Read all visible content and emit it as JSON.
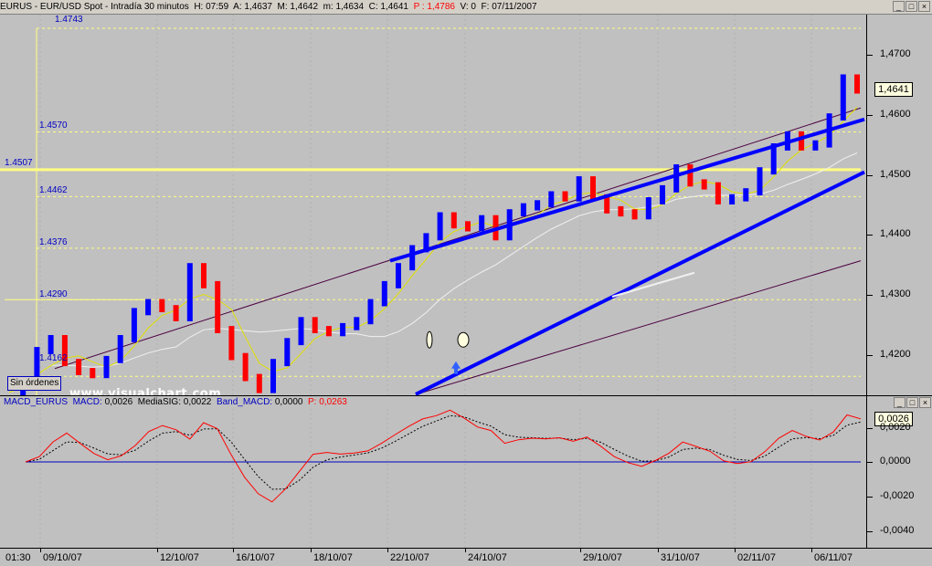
{
  "window": {
    "title_symbol": "EURUS",
    "title_name": "EUR/USD Spot",
    "title_period": "Intradía 30 minutos",
    "title_h": "H: 07:59",
    "title_a": "A: 1,4637",
    "title_m": "M: 1,4642",
    "title_min": "m: 1,4634",
    "title_c": "C: 1,4641",
    "title_p": "P : 1,4786",
    "title_v": "V: 0",
    "title_f": "F: 07/11/2007",
    "btn_min": "_",
    "btn_max": "□",
    "btn_close": "×"
  },
  "price_axis": {
    "ticks": [
      "1,4700",
      "1,4600",
      "1,4500",
      "1,4400",
      "1,4300",
      "1,4200"
    ],
    "last_price": "1,4641"
  },
  "levels": [
    "1.4743",
    "1.4570",
    "1.4507",
    "1.4462",
    "1.4376",
    "1.4290",
    "1.4162"
  ],
  "orders_button": "Sin órdenes",
  "watermark": "www.visualchart.com",
  "macd": {
    "name": "MACD_EURUS",
    "macd_label": "MACD:",
    "macd_value": "0,0026",
    "sig_label": "MediaSIG:",
    "sig_value": "0,0022",
    "band_label": "Band_MACD:",
    "band_value": "0,0000",
    "p_label": "P:",
    "p_value": "0,0263",
    "ticks": [
      "0,0020",
      "0,0000",
      "-0,0020",
      "-0,0040"
    ],
    "last_value": "0,0026"
  },
  "date_axis": [
    "01:30",
    "09/10/07",
    "12/10/07",
    "16/10/07",
    "18/10/07",
    "22/10/07",
    "24/10/07",
    "29/10/07",
    "31/10/07",
    "02/11/07",
    "06/11/07"
  ],
  "colors": {
    "background": "#c0c0c0",
    "up_candle": "#0000ff",
    "down_candle": "#ff0000",
    "trendline": "#0000ff",
    "channel": "#4b0040",
    "level_line": "#ffff80",
    "moving_average": "#e0e000",
    "long_average": "#f0f0f0",
    "macd_line": "#ff0000",
    "signal_line": "#000000"
  },
  "chart_data": {
    "type": "line",
    "title": "EUR/USD Spot - Intradía 30 minutos",
    "price_range": [
      1.413,
      1.478
    ],
    "date_labels": [
      "09/10/07",
      "12/10/07",
      "16/10/07",
      "18/10/07",
      "22/10/07",
      "24/10/07",
      "29/10/07",
      "31/10/07",
      "02/11/07",
      "06/11/07"
    ],
    "series": [
      {
        "name": "EURUS",
        "values": [
          1.4135,
          1.4155,
          1.4205,
          1.4225,
          1.4185,
          1.417,
          1.4165,
          1.419,
          1.4225,
          1.427,
          1.4285,
          1.4275,
          1.426,
          1.4345,
          1.4315,
          1.424,
          1.4195,
          1.416,
          1.414,
          1.4185,
          1.422,
          1.4255,
          1.424,
          1.4235,
          1.4245,
          1.4255,
          1.4285,
          1.4315,
          1.4345,
          1.4375,
          1.4395,
          1.443,
          1.4415,
          1.441,
          1.4425,
          1.4395,
          1.4435,
          1.4445,
          1.445,
          1.4465,
          1.446,
          1.449,
          1.446,
          1.444,
          1.4435,
          1.443,
          1.4455,
          1.4475,
          1.451,
          1.4485,
          1.448,
          1.4455,
          1.446,
          1.447,
          1.4505,
          1.4545,
          1.4565,
          1.4545,
          1.455,
          1.4595,
          1.466,
          1.464
        ]
      }
    ],
    "horizontal_levels": [
      1.4743,
      1.457,
      1.4507,
      1.4462,
      1.4376,
      1.429,
      1.4162
    ],
    "macd_range": [
      -0.0044,
      0.0028
    ],
    "macd_zero": 0.0
  }
}
